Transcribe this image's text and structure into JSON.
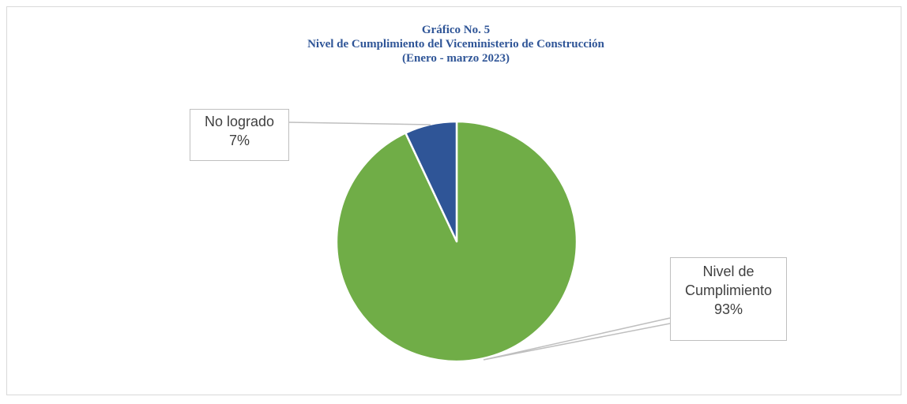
{
  "chart_data": {
    "type": "pie",
    "title": [
      "Gráfico No. 5",
      "Nivel de Cumplimiento del Viceministerio de Construcción",
      "(Enero - marzo 2023)"
    ],
    "categories": [
      "Nivel de Cumplimiento",
      "No logrado"
    ],
    "values": [
      93,
      7
    ],
    "value_labels": [
      "93%",
      "7%"
    ],
    "colors": [
      "#70ad47",
      "#2f5597"
    ]
  }
}
